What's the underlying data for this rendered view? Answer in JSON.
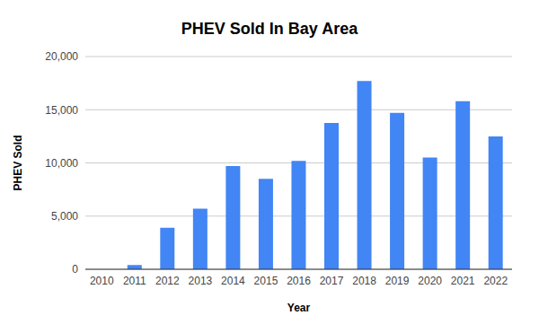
{
  "chart_data": {
    "type": "bar",
    "title": "PHEV Sold In Bay Area",
    "x_label": "Year",
    "y_label": "PHEV Sold",
    "categories": [
      "2010",
      "2011",
      "2012",
      "2013",
      "2014",
      "2015",
      "2016",
      "2017",
      "2018",
      "2019",
      "2020",
      "2021",
      "2022"
    ],
    "values": [
      0,
      400,
      3900,
      5700,
      9700,
      8500,
      10200,
      13750,
      17700,
      14700,
      10500,
      15800,
      12500
    ],
    "color": "#4285f4",
    "ylim": [
      0,
      20000
    ],
    "yticks": [
      0,
      {
        "value": 5000,
        "label": "5,000"
      },
      {
        "value": 10000,
        "label": "10,000"
      },
      {
        "value": 15000,
        "label": "15,000"
      },
      {
        "value": 20000,
        "label": "20,000"
      }
    ],
    "grid": true
  }
}
